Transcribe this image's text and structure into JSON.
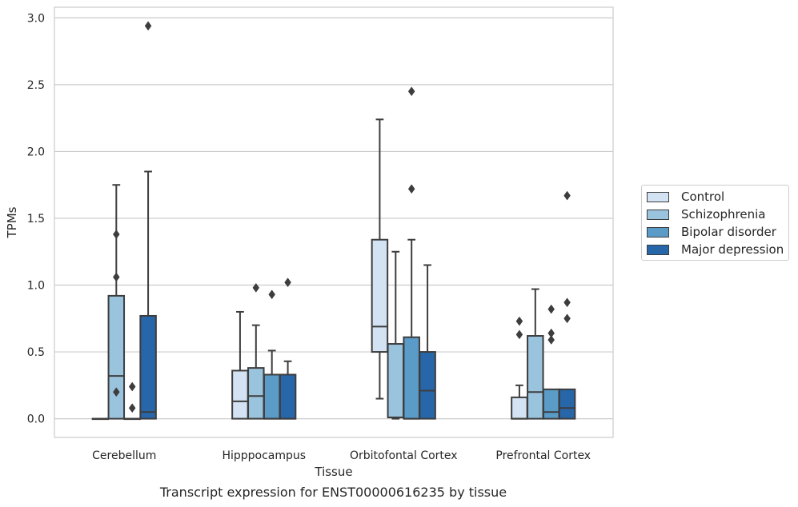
{
  "chart_data": {
    "type": "box",
    "title": "",
    "caption": "Transcript expression for ENST00000616235 by tissue",
    "xlabel": "Tissue",
    "ylabel": "TPMs",
    "ylim": [
      -0.14,
      3.08
    ],
    "yticks": [
      "0.0",
      "0.5",
      "1.0",
      "1.5",
      "2.0",
      "2.5",
      "3.0"
    ],
    "ytick_values": [
      0.0,
      0.5,
      1.0,
      1.5,
      2.0,
      2.5,
      3.0
    ],
    "grid": "horizontal",
    "legend_placement": "right",
    "categories": [
      "Cerebellum",
      "Hipppocampus",
      "Orbitofontal Cortex",
      "Prefrontal Cortex"
    ],
    "series": [
      {
        "name": "Control",
        "color": "#d3e3f3",
        "boxes": [
          {
            "q1": 0.0,
            "median": 0.0,
            "q3": 0.0,
            "whislo": 0.0,
            "whishi": 0.0,
            "fliers": []
          },
          {
            "q1": 0.0,
            "median": 0.13,
            "q3": 0.36,
            "whislo": 0.0,
            "whishi": 0.8,
            "fliers": []
          },
          {
            "q1": 0.5,
            "median": 0.69,
            "q3": 1.34,
            "whislo": 0.15,
            "whishi": 2.24,
            "fliers": []
          },
          {
            "q1": 0.0,
            "median": 0.0,
            "q3": 0.16,
            "whislo": 0.0,
            "whishi": 0.25,
            "fliers": [
              0.63,
              0.73
            ]
          }
        ]
      },
      {
        "name": "Schizophrenia",
        "color": "#9ac3dd",
        "boxes": [
          {
            "q1": 0.0,
            "median": 0.32,
            "q3": 0.92,
            "whislo": 0.0,
            "whishi": 1.75,
            "fliers": [
              0.2,
              1.06,
              1.38
            ]
          },
          {
            "q1": 0.0,
            "median": 0.17,
            "q3": 0.38,
            "whislo": 0.0,
            "whishi": 0.7,
            "fliers": [
              0.98
            ]
          },
          {
            "q1": 0.01,
            "median": 0.01,
            "q3": 0.56,
            "whislo": 0.0,
            "whishi": 1.25,
            "fliers": []
          },
          {
            "q1": 0.0,
            "median": 0.2,
            "q3": 0.62,
            "whislo": 0.0,
            "whishi": 0.97,
            "fliers": []
          }
        ]
      },
      {
        "name": "Bipolar disorder",
        "color": "#5b9bc8",
        "boxes": [
          {
            "q1": 0.0,
            "median": 0.0,
            "q3": 0.0,
            "whislo": 0.0,
            "whishi": 0.0,
            "fliers": [
              0.08,
              0.24
            ]
          },
          {
            "q1": 0.0,
            "median": 0.0,
            "q3": 0.33,
            "whislo": 0.0,
            "whishi": 0.51,
            "fliers": [
              0.93
            ]
          },
          {
            "q1": 0.0,
            "median": 0.0,
            "q3": 0.61,
            "whislo": 0.0,
            "whishi": 1.34,
            "fliers": [
              1.72,
              2.45
            ]
          },
          {
            "q1": 0.0,
            "median": 0.05,
            "q3": 0.22,
            "whislo": 0.0,
            "whishi": 0.22,
            "fliers": [
              0.59,
              0.64,
              0.82
            ]
          }
        ]
      },
      {
        "name": "Major depression",
        "color": "#2767a9",
        "boxes": [
          {
            "q1": 0.0,
            "median": 0.05,
            "q3": 0.77,
            "whislo": 0.0,
            "whishi": 1.85,
            "fliers": [
              2.94
            ]
          },
          {
            "q1": 0.0,
            "median": 0.0,
            "q3": 0.33,
            "whislo": 0.0,
            "whishi": 0.43,
            "fliers": [
              1.02
            ]
          },
          {
            "q1": 0.0,
            "median": 0.21,
            "q3": 0.5,
            "whislo": 0.0,
            "whishi": 1.15,
            "fliers": []
          },
          {
            "q1": 0.0,
            "median": 0.08,
            "q3": 0.22,
            "whislo": 0.0,
            "whishi": 0.22,
            "fliers": [
              0.75,
              0.87,
              1.67
            ]
          }
        ]
      }
    ]
  }
}
